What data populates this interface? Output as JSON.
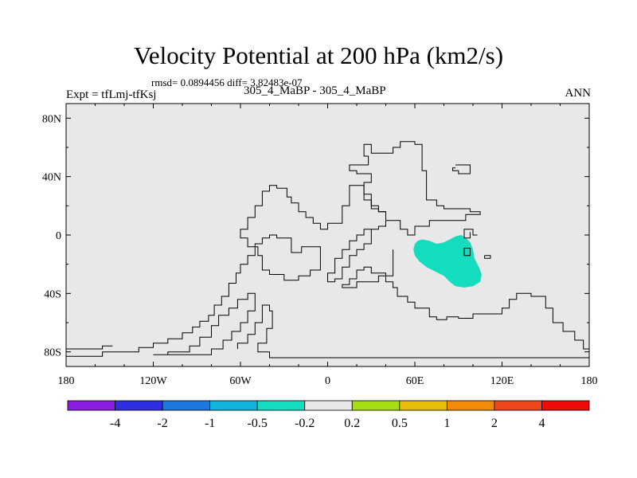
{
  "chart_data": {
    "type": "contour-map",
    "title": "Velocity Potential at 200 hPa (km2/s)",
    "stats": "rmsd= 0.0894456 diff= 3.82483e-07",
    "left_label": "Expt = tfLmj-tfKsj",
    "center_label": "305_4_MaBP - 305_4_MaBP",
    "right_label": "ANN",
    "x_range": [
      -180,
      180
    ],
    "y_range": [
      -90,
      90
    ],
    "x_ticks": [
      {
        "value": -180,
        "label": "180"
      },
      {
        "value": -120,
        "label": "120W"
      },
      {
        "value": -60,
        "label": "60W"
      },
      {
        "value": 0,
        "label": "0"
      },
      {
        "value": 60,
        "label": "60E"
      },
      {
        "value": 120,
        "label": "120E"
      },
      {
        "value": 180,
        "label": "180"
      }
    ],
    "y_ticks": [
      {
        "value": 80,
        "label": "80N"
      },
      {
        "value": 40,
        "label": "40N"
      },
      {
        "value": 0,
        "label": "0"
      },
      {
        "value": -40,
        "label": "40S"
      },
      {
        "value": -80,
        "label": "80S"
      }
    ],
    "background_color": "#e8e8e8",
    "colorbar": {
      "colors": [
        "#8a1ee0",
        "#2e2ee0",
        "#1e78dc",
        "#12b4dc",
        "#14dcbe",
        "#e8e8e8",
        "#a8dc14",
        "#e6be0a",
        "#f08c0a",
        "#f0461e",
        "#f00a0a"
      ],
      "labels": [
        "-4",
        "-2",
        "-1",
        "-0.5",
        "-0.2",
        "0.2",
        "0.5",
        "1",
        "2",
        "4"
      ]
    },
    "shaded_region": {
      "level": "-0.5 to -0.2",
      "color": "#14dcbe",
      "outline": [
        [
          62,
          -4
        ],
        [
          60,
          -6
        ],
        [
          59,
          -10
        ],
        [
          60,
          -14
        ],
        [
          63,
          -18
        ],
        [
          68,
          -22
        ],
        [
          74,
          -25
        ],
        [
          80,
          -28
        ],
        [
          84,
          -32
        ],
        [
          88,
          -35
        ],
        [
          94,
          -36
        ],
        [
          100,
          -35
        ],
        [
          105,
          -32
        ],
        [
          106,
          -27
        ],
        [
          104,
          -22
        ],
        [
          101,
          -16
        ],
        [
          100,
          -10
        ],
        [
          98,
          -5
        ],
        [
          95,
          -2
        ],
        [
          92,
          0
        ],
        [
          88,
          -1
        ],
        [
          84,
          -3
        ],
        [
          80,
          -5
        ],
        [
          75,
          -6
        ],
        [
          70,
          -4
        ],
        [
          65,
          -3
        ]
      ]
    },
    "small_box": [
      [
        94,
        -9
      ],
      [
        98,
        -9
      ],
      [
        98,
        -14
      ],
      [
        94,
        -14
      ]
    ],
    "coastlines": [
      [
        [
          -180,
          -79
        ],
        [
          -180,
          -83
        ],
        [
          -155,
          -83
        ],
        [
          -155,
          -80
        ],
        [
          -130,
          -80
        ],
        [
          -130,
          -77
        ],
        [
          -120,
          -77
        ],
        [
          -120,
          -74
        ],
        [
          -110,
          -74
        ],
        [
          -110,
          -71
        ],
        [
          -100,
          -71
        ],
        [
          -100,
          -67
        ],
        [
          -93,
          -67
        ],
        [
          -93,
          -63
        ],
        [
          -88,
          -63
        ],
        [
          -88,
          -59
        ],
        [
          -82,
          -59
        ],
        [
          -82,
          -55
        ],
        [
          -78,
          -55
        ],
        [
          -78,
          -48
        ],
        [
          -73,
          -48
        ],
        [
          -73,
          -42
        ],
        [
          -68,
          -42
        ],
        [
          -68,
          -33
        ],
        [
          -63,
          -33
        ],
        [
          -63,
          -26
        ],
        [
          -60,
          -26
        ],
        [
          -60,
          -20
        ],
        [
          -55,
          -20
        ],
        [
          -55,
          -14
        ],
        [
          -50,
          -14
        ],
        [
          -50,
          -6
        ],
        [
          -45,
          -6
        ],
        [
          -45,
          -2
        ],
        [
          -40,
          -2
        ],
        [
          -40,
          0
        ],
        [
          -35,
          0
        ],
        [
          -35,
          -2
        ],
        [
          -25,
          -2
        ],
        [
          -25,
          -12
        ],
        [
          -18,
          -12
        ],
        [
          -18,
          -8
        ],
        [
          -5,
          -8
        ],
        [
          -5,
          -24
        ],
        [
          -12,
          -24
        ],
        [
          -12,
          -28
        ],
        [
          -20,
          -28
        ],
        [
          -20,
          -31
        ],
        [
          -30,
          -31
        ],
        [
          -30,
          -27
        ],
        [
          -40,
          -27
        ],
        [
          -40,
          -24
        ],
        [
          -45,
          -24
        ],
        [
          -45,
          -14
        ],
        [
          -48,
          -14
        ],
        [
          -48,
          -8
        ],
        [
          -55,
          -8
        ],
        [
          -55,
          -2
        ],
        [
          -60,
          -2
        ],
        [
          -60,
          4
        ],
        [
          -55,
          4
        ],
        [
          -55,
          12
        ],
        [
          -50,
          12
        ],
        [
          -50,
          20
        ],
        [
          -45,
          20
        ],
        [
          -45,
          30
        ],
        [
          -40,
          30
        ],
        [
          -40,
          34
        ],
        [
          -35,
          34
        ],
        [
          -35,
          32
        ],
        [
          -28,
          32
        ],
        [
          -28,
          26
        ],
        [
          -25,
          26
        ],
        [
          -25,
          22
        ],
        [
          -20,
          22
        ],
        [
          -20,
          16
        ],
        [
          -15,
          16
        ],
        [
          -15,
          12
        ],
        [
          -10,
          12
        ],
        [
          -10,
          8
        ],
        [
          -5,
          8
        ],
        [
          -5,
          4
        ],
        [
          0,
          4
        ],
        [
          0,
          8
        ],
        [
          10,
          8
        ],
        [
          10,
          20
        ],
        [
          15,
          20
        ],
        [
          15,
          34
        ],
        [
          25,
          34
        ],
        [
          25,
          24
        ],
        [
          30,
          24
        ],
        [
          30,
          18
        ],
        [
          35,
          18
        ],
        [
          35,
          16
        ],
        [
          40,
          16
        ],
        [
          40,
          6
        ],
        [
          35,
          6
        ],
        [
          35,
          4
        ],
        [
          30,
          4
        ],
        [
          30,
          -6
        ],
        [
          25,
          -6
        ],
        [
          25,
          -10
        ],
        [
          20,
          -10
        ],
        [
          20,
          -14
        ],
        [
          15,
          -14
        ],
        [
          15,
          -22
        ],
        [
          10,
          -22
        ],
        [
          10,
          -30
        ],
        [
          5,
          -30
        ],
        [
          5,
          -32
        ],
        [
          0,
          -32
        ],
        [
          0,
          -26
        ],
        [
          5,
          -26
        ],
        [
          5,
          -16
        ],
        [
          10,
          -16
        ],
        [
          10,
          -10
        ],
        [
          15,
          -10
        ],
        [
          15,
          -4
        ],
        [
          20,
          -4
        ],
        [
          20,
          0
        ],
        [
          25,
          0
        ],
        [
          25,
          4
        ],
        [
          30,
          4
        ]
      ],
      [
        [
          -180,
          -78
        ],
        [
          -155,
          -78
        ],
        [
          -155,
          -76
        ],
        [
          -148,
          -76
        ]
      ],
      [
        [
          -120,
          -82
        ],
        [
          -110,
          -82
        ],
        [
          -110,
          -80
        ],
        [
          -95,
          -80
        ],
        [
          -95,
          -76
        ],
        [
          -88,
          -76
        ],
        [
          -88,
          -70
        ],
        [
          -80,
          -70
        ],
        [
          -80,
          -62
        ],
        [
          -75,
          -62
        ],
        [
          -75,
          -55
        ],
        [
          -68,
          -55
        ],
        [
          -68,
          -50
        ],
        [
          -62,
          -50
        ],
        [
          -62,
          -44
        ],
        [
          -55,
          -44
        ],
        [
          -55,
          -40
        ],
        [
          -50,
          -40
        ],
        [
          -50,
          -52
        ],
        [
          -55,
          -52
        ],
        [
          -55,
          -60
        ],
        [
          -60,
          -60
        ],
        [
          -60,
          -66
        ],
        [
          -66,
          -66
        ],
        [
          -66,
          -72
        ],
        [
          -72,
          -72
        ],
        [
          -72,
          -78
        ],
        [
          -80,
          -78
        ],
        [
          -80,
          -82
        ],
        [
          -110,
          -82
        ]
      ],
      [
        [
          -62,
          -78
        ],
        [
          -62,
          -74
        ],
        [
          -55,
          -74
        ],
        [
          -55,
          -68
        ],
        [
          -50,
          -68
        ],
        [
          -50,
          -60
        ],
        [
          -45,
          -60
        ],
        [
          -45,
          -48
        ],
        [
          -40,
          -48
        ],
        [
          -40,
          -52
        ],
        [
          -38,
          -52
        ],
        [
          -38,
          -64
        ],
        [
          -42,
          -64
        ],
        [
          -42,
          -74
        ],
        [
          -48,
          -74
        ],
        [
          -48,
          -80
        ],
        [
          -40,
          -80
        ],
        [
          -40,
          -84
        ],
        [
          180,
          -84
        ]
      ],
      [
        [
          180,
          -78
        ],
        [
          176,
          -78
        ],
        [
          176,
          -72
        ],
        [
          170,
          -72
        ],
        [
          170,
          -66
        ],
        [
          162,
          -66
        ],
        [
          162,
          -60
        ],
        [
          155,
          -60
        ],
        [
          155,
          -50
        ],
        [
          150,
          -50
        ],
        [
          150,
          -42
        ],
        [
          140,
          -42
        ],
        [
          140,
          -40
        ],
        [
          130,
          -40
        ],
        [
          130,
          -44
        ],
        [
          125,
          -44
        ],
        [
          125,
          -50
        ],
        [
          120,
          -50
        ],
        [
          120,
          -54
        ],
        [
          100,
          -54
        ],
        [
          100,
          -57
        ],
        [
          90,
          -57
        ],
        [
          90,
          -56
        ],
        [
          82,
          -56
        ],
        [
          82,
          -58
        ],
        [
          75,
          -58
        ],
        [
          75,
          -56
        ],
        [
          70,
          -56
        ],
        [
          70,
          -50
        ],
        [
          60,
          -50
        ],
        [
          60,
          -46
        ],
        [
          55,
          -46
        ],
        [
          55,
          -42
        ],
        [
          48,
          -42
        ],
        [
          48,
          -36
        ],
        [
          45,
          -36
        ],
        [
          45,
          -32
        ],
        [
          40,
          -32
        ],
        [
          40,
          -26
        ],
        [
          30,
          -26
        ],
        [
          30,
          -22
        ],
        [
          25,
          -22
        ],
        [
          25,
          -24
        ],
        [
          20,
          -24
        ],
        [
          20,
          -30
        ],
        [
          15,
          -30
        ],
        [
          15,
          -34
        ],
        [
          10,
          -34
        ],
        [
          10,
          -36
        ],
        [
          20,
          -36
        ],
        [
          20,
          -32
        ],
        [
          35,
          -32
        ],
        [
          35,
          -28
        ],
        [
          45,
          -28
        ],
        [
          45,
          -10
        ]
      ],
      [
        [
          24,
          48
        ],
        [
          28,
          48
        ],
        [
          28,
          54
        ],
        [
          25,
          54
        ],
        [
          25,
          62
        ],
        [
          30,
          62
        ],
        [
          30,
          56
        ],
        [
          45,
          56
        ],
        [
          45,
          60
        ],
        [
          50,
          60
        ],
        [
          50,
          64
        ],
        [
          60,
          64
        ],
        [
          60,
          62
        ],
        [
          65,
          62
        ],
        [
          65,
          44
        ],
        [
          68,
          44
        ],
        [
          68,
          24
        ],
        [
          75,
          24
        ],
        [
          75,
          20
        ],
        [
          80,
          20
        ],
        [
          80,
          18
        ],
        [
          98,
          18
        ],
        [
          98,
          16
        ],
        [
          105,
          16
        ],
        [
          105,
          14
        ],
        [
          95,
          14
        ],
        [
          95,
          10
        ],
        [
          70,
          10
        ],
        [
          70,
          6
        ],
        [
          60,
          6
        ],
        [
          60,
          0
        ],
        [
          55,
          0
        ],
        [
          55,
          4
        ],
        [
          50,
          4
        ],
        [
          50,
          10
        ],
        [
          40,
          10
        ],
        [
          40,
          16
        ],
        [
          35,
          16
        ],
        [
          35,
          20
        ],
        [
          30,
          20
        ],
        [
          30,
          28
        ],
        [
          25,
          28
        ],
        [
          25,
          36
        ],
        [
          30,
          36
        ],
        [
          30,
          42
        ],
        [
          20,
          42
        ],
        [
          20,
          44
        ],
        [
          15,
          44
        ],
        [
          15,
          48
        ],
        [
          24,
          48
        ]
      ],
      [
        [
          88,
          46
        ],
        [
          86,
          46
        ],
        [
          86,
          44
        ],
        [
          90,
          44
        ],
        [
          90,
          42
        ],
        [
          98,
          42
        ],
        [
          98,
          48
        ],
        [
          88,
          48
        ]
      ],
      [
        [
          98,
          2
        ],
        [
          98,
          -2
        ],
        [
          94,
          -2
        ],
        [
          94,
          4
        ],
        [
          100,
          4
        ],
        [
          100,
          0
        ],
        [
          103,
          0
        ]
      ],
      [
        [
          108,
          -14
        ],
        [
          112,
          -14
        ],
        [
          112,
          -16
        ],
        [
          108,
          -16
        ],
        [
          108,
          -14
        ]
      ]
    ]
  }
}
